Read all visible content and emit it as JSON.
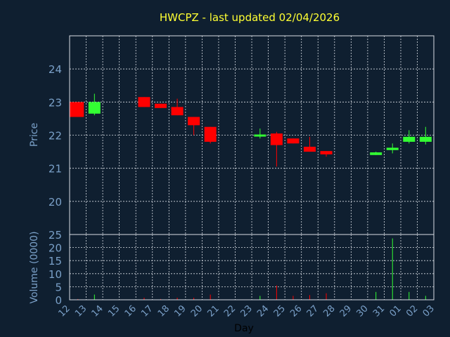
{
  "chart_data": {
    "type": "candlestick",
    "title": "HWCPZ - last updated 02/04/2026",
    "xlabel": "Day",
    "price_ylabel": "Price",
    "volume_ylabel": "Volume (0000)",
    "x_ticks": [
      "12",
      "13",
      "14",
      "15",
      "16",
      "17",
      "18",
      "19",
      "20",
      "21",
      "22",
      "23",
      "24",
      "25",
      "26",
      "27",
      "28",
      "29",
      "30",
      "31",
      "01",
      "02",
      "03"
    ],
    "price_ylim": [
      19.0,
      25.0
    ],
    "price_ticks": [
      20,
      21,
      22,
      23,
      24
    ],
    "volume_ylim": [
      0,
      25
    ],
    "volume_ticks": [
      0,
      5,
      10,
      15,
      20,
      25
    ],
    "grid": true,
    "up_color": "#33ff33",
    "down_color": "#ff0000",
    "candles": [
      {
        "day": "12",
        "open": 23.0,
        "high": 23.0,
        "low": 22.55,
        "close": 22.55,
        "volume": 0.3
      },
      {
        "day": "13",
        "open": 22.65,
        "high": 23.25,
        "low": 22.6,
        "close": 23.0,
        "volume": 2.0
      },
      {
        "day": "16",
        "open": 23.15,
        "high": 23.15,
        "low": 22.85,
        "close": 22.85,
        "volume": 0.8
      },
      {
        "day": "17",
        "open": 22.95,
        "high": 22.95,
        "low": 22.82,
        "close": 22.82,
        "volume": 0.3
      },
      {
        "day": "18",
        "open": 22.85,
        "high": 23.1,
        "low": 22.6,
        "close": 22.6,
        "volume": 0.8
      },
      {
        "day": "19",
        "open": 22.55,
        "high": 22.55,
        "low": 22.0,
        "close": 22.3,
        "volume": 0.8
      },
      {
        "day": "20",
        "open": 22.25,
        "high": 22.25,
        "low": 21.75,
        "close": 21.8,
        "volume": 2.0
      },
      {
        "day": "23",
        "open": 21.98,
        "high": 22.2,
        "low": 21.9,
        "close": 22.02,
        "volume": 1.5
      },
      {
        "day": "24",
        "open": 22.05,
        "high": 22.1,
        "low": 21.05,
        "close": 21.7,
        "volume": 5.5
      },
      {
        "day": "25",
        "open": 21.9,
        "high": 21.9,
        "low": 21.75,
        "close": 21.75,
        "volume": 1.5
      },
      {
        "day": "26",
        "open": 21.65,
        "high": 21.95,
        "low": 21.5,
        "close": 21.5,
        "volume": 1.8
      },
      {
        "day": "27",
        "open": 21.52,
        "high": 21.52,
        "low": 21.35,
        "close": 21.42,
        "volume": 2.5
      },
      {
        "day": "30",
        "open": 21.4,
        "high": 21.5,
        "low": 21.4,
        "close": 21.48,
        "volume": 3.0
      },
      {
        "day": "31",
        "open": 21.55,
        "high": 21.75,
        "low": 21.45,
        "close": 21.62,
        "volume": 23.5
      },
      {
        "day": "01",
        "open": 21.8,
        "high": 22.15,
        "low": 21.75,
        "close": 21.95,
        "volume": 3.0
      },
      {
        "day": "02",
        "open": 21.8,
        "high": 22.25,
        "low": 21.72,
        "close": 21.95,
        "volume": 1.5
      }
    ]
  }
}
